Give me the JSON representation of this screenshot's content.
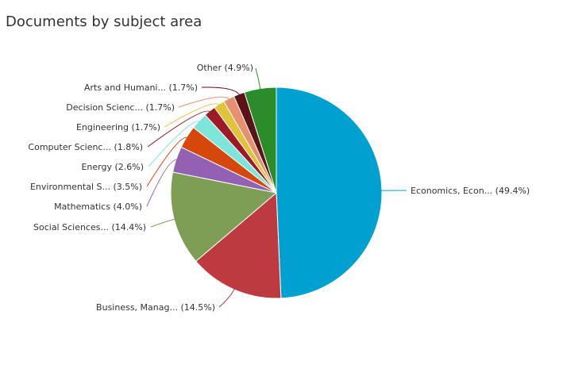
{
  "chart_data": {
    "type": "pie",
    "title": "Documents by subject area",
    "legend": "none",
    "slices": [
      {
        "label": "Economics, Econ...",
        "value": 49.4,
        "display": "Economics, Econ... (49.4%)",
        "color": "#00a0d0"
      },
      {
        "label": "Business, Manag...",
        "value": 14.5,
        "display": "Business, Manag... (14.5%)",
        "color": "#bc3a40"
      },
      {
        "label": "Social Sciences...",
        "value": 14.4,
        "display": "Social Sciences... (14.4%)",
        "color": "#7e9e55"
      },
      {
        "label": "Mathematics",
        "value": 4.0,
        "display": "Mathematics (4.0%)",
        "color": "#9460b4"
      },
      {
        "label": "Environmental S...",
        "value": 3.5,
        "display": "Environmental S... (3.5%)",
        "color": "#d5470b"
      },
      {
        "label": "Energy",
        "value": 2.6,
        "display": "Energy (2.6%)",
        "color": "#7de5d9"
      },
      {
        "label": "Computer Scienc...",
        "value": 1.8,
        "display": "Computer Scienc... (1.8%)",
        "color": "#9e1a26"
      },
      {
        "label": "Engineering",
        "value": 1.7,
        "display": "Engineering (1.7%)",
        "color": "#dfc43b"
      },
      {
        "label": "Decision Scienc...",
        "value": 1.7,
        "display": "Decision Scienc... (1.7%)",
        "color": "#e6906d"
      },
      {
        "label": "Arts and Humani...",
        "value": 1.7,
        "display": "Arts and Humani... (1.7%)",
        "color": "#5c1317"
      },
      {
        "label": "Other",
        "value": 4.9,
        "display": "Other (4.9%)",
        "color": "#2a8c2a"
      }
    ]
  }
}
